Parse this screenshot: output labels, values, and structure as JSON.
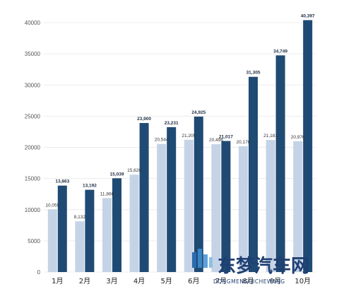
{
  "chart_data": {
    "type": "bar",
    "categories": [
      "1月",
      "2月",
      "3月",
      "4月",
      "5月",
      "6月",
      "7月",
      "8月",
      "9月",
      "10月"
    ],
    "series": [
      {
        "values": [
          10055,
          8132,
          11866,
          15620,
          20544,
          21209,
          20498,
          20176,
          21181,
          20976
        ],
        "labels": [
          "10,055",
          "8,132",
          "11,866",
          "15,620",
          "20,544",
          "21,209",
          "20,498",
          "20,176",
          "21,181",
          "20,976"
        ]
      },
      {
        "values": [
          13863,
          13192,
          15039,
          23900,
          23231,
          24925,
          21017,
          31305,
          34749,
          40397
        ],
        "labels": [
          "13,863",
          "13,192",
          "15,039",
          "23,900",
          "23,231",
          "24,925",
          "21,017",
          "31,305",
          "34,749",
          "40,397"
        ]
      }
    ],
    "yticks": [
      "0",
      "5000",
      "10000",
      "15000",
      "20000",
      "25000",
      "30000",
      "35000",
      "40000"
    ],
    "ylim": [
      0,
      40000
    ],
    "grid": true,
    "colors": [
      "#c5d3e6",
      "#1f4a74"
    ]
  },
  "watermark": {
    "text": "东梦汽车网",
    "subtext": "DONGMENGQICHEWANG",
    "color": "#1f3f73"
  }
}
